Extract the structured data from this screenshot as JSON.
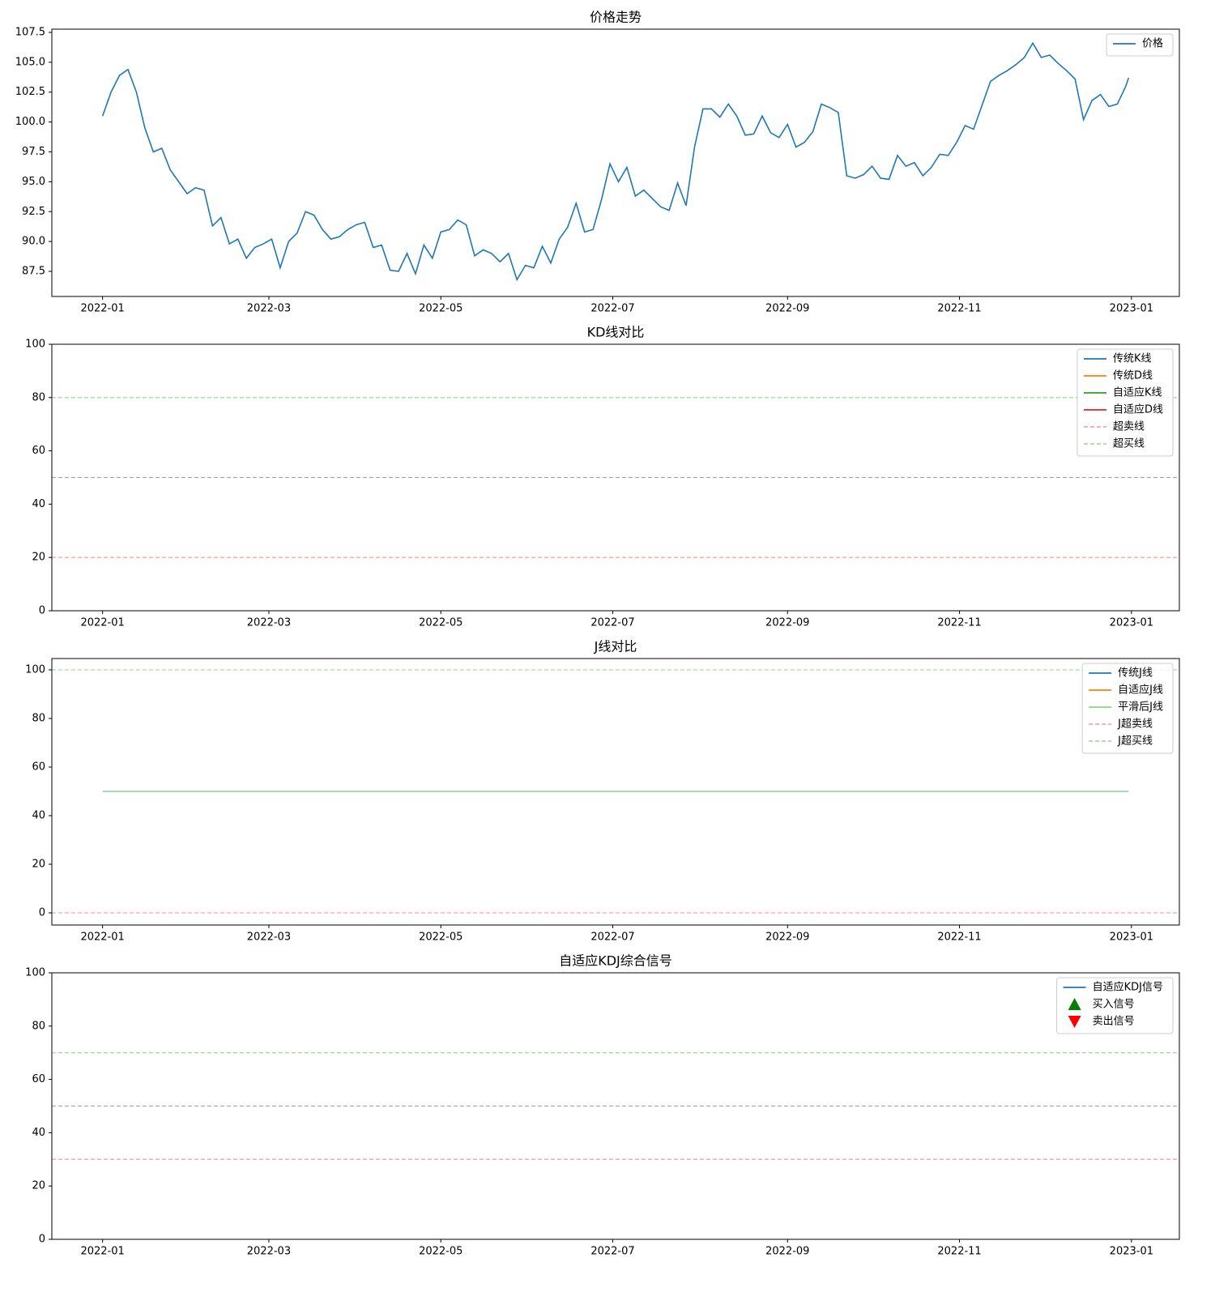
{
  "chart_data": [
    {
      "type": "line",
      "title": "价格走势",
      "x": [
        "2022-01-01",
        "2022-01-04",
        "2022-01-07",
        "2022-01-10",
        "2022-01-13",
        "2022-01-16",
        "2022-01-19",
        "2022-01-22",
        "2022-01-25",
        "2022-01-28",
        "2022-01-31",
        "2022-02-03",
        "2022-02-06",
        "2022-02-09",
        "2022-02-12",
        "2022-02-15",
        "2022-02-18",
        "2022-02-21",
        "2022-02-24",
        "2022-02-27",
        "2022-03-02",
        "2022-03-05",
        "2022-03-08",
        "2022-03-11",
        "2022-03-14",
        "2022-03-17",
        "2022-03-20",
        "2022-03-23",
        "2022-03-26",
        "2022-03-29",
        "2022-04-01",
        "2022-04-04",
        "2022-04-07",
        "2022-04-10",
        "2022-04-13",
        "2022-04-16",
        "2022-04-19",
        "2022-04-22",
        "2022-04-25",
        "2022-04-28",
        "2022-05-01",
        "2022-05-04",
        "2022-05-07",
        "2022-05-10",
        "2022-05-13",
        "2022-05-16",
        "2022-05-19",
        "2022-05-22",
        "2022-05-25",
        "2022-05-28",
        "2022-05-31",
        "2022-06-03",
        "2022-06-06",
        "2022-06-09",
        "2022-06-12",
        "2022-06-15",
        "2022-06-18",
        "2022-06-21",
        "2022-06-24",
        "2022-06-27",
        "2022-06-30",
        "2022-07-03",
        "2022-07-06",
        "2022-07-09",
        "2022-07-12",
        "2022-07-15",
        "2022-07-18",
        "2022-07-21",
        "2022-07-24",
        "2022-07-27",
        "2022-07-30",
        "2022-08-02",
        "2022-08-05",
        "2022-08-08",
        "2022-08-11",
        "2022-08-14",
        "2022-08-17",
        "2022-08-20",
        "2022-08-23",
        "2022-08-26",
        "2022-08-29",
        "2022-09-01",
        "2022-09-04",
        "2022-09-07",
        "2022-09-10",
        "2022-09-13",
        "2022-09-16",
        "2022-09-19",
        "2022-09-22",
        "2022-09-25",
        "2022-09-28",
        "2022-10-01",
        "2022-10-04",
        "2022-10-07",
        "2022-10-10",
        "2022-10-13",
        "2022-10-16",
        "2022-10-19",
        "2022-10-22",
        "2022-10-25",
        "2022-10-28",
        "2022-10-31",
        "2022-11-03",
        "2022-11-06",
        "2022-11-09",
        "2022-11-12",
        "2022-11-15",
        "2022-11-18",
        "2022-11-21",
        "2022-11-24",
        "2022-11-27",
        "2022-11-30",
        "2022-12-03",
        "2022-12-06",
        "2022-12-09",
        "2022-12-12",
        "2022-12-15",
        "2022-12-18",
        "2022-12-21",
        "2022-12-24",
        "2022-12-27",
        "2022-12-30",
        "2022-12-31"
      ],
      "series": [
        {
          "name": "价格",
          "color": "#1f77b4",
          "values": [
            100.5,
            102.5,
            103.9,
            104.4,
            102.5,
            99.5,
            97.5,
            97.8,
            96.0,
            95.0,
            94.0,
            94.5,
            94.3,
            91.3,
            92.0,
            89.8,
            90.2,
            88.6,
            89.5,
            89.8,
            90.2,
            87.8,
            90.0,
            90.7,
            92.5,
            92.2,
            91.0,
            90.2,
            90.4,
            91.0,
            91.4,
            91.6,
            89.5,
            89.7,
            87.6,
            87.5,
            89.0,
            87.3,
            89.7,
            88.6,
            90.8,
            91.0,
            91.8,
            91.4,
            88.8,
            89.3,
            89.0,
            88.3,
            89.0,
            86.8,
            88.0,
            87.8,
            89.6,
            88.2,
            90.2,
            91.2,
            93.2,
            90.8,
            91.0,
            93.5,
            96.5,
            95.0,
            96.2,
            93.8,
            94.3,
            93.6,
            92.9,
            92.6,
            94.9,
            93.0,
            97.9,
            101.1,
            101.1,
            100.4,
            101.5,
            100.5,
            98.9,
            99.0,
            100.5,
            99.1,
            98.7,
            99.8,
            97.9,
            98.3,
            99.2,
            101.5,
            101.2,
            100.8,
            95.5,
            95.3,
            95.6,
            96.3,
            95.3,
            95.2,
            97.2,
            96.3,
            96.6,
            95.5,
            96.2,
            97.3,
            97.2,
            98.3,
            99.7,
            99.4,
            101.4,
            103.4,
            103.9,
            104.3,
            104.8,
            105.4,
            106.6,
            105.4,
            105.6,
            104.9,
            104.3,
            103.6,
            100.2,
            101.8,
            102.3,
            101.3,
            101.5,
            103.0,
            103.7
          ]
        }
      ],
      "xlim": [
        "2021-12-14",
        "2023-01-18"
      ],
      "xticks": [
        {
          "value": "2022-01-01",
          "label": "2022-01"
        },
        {
          "value": "2022-03-01",
          "label": "2022-03"
        },
        {
          "value": "2022-05-01",
          "label": "2022-05"
        },
        {
          "value": "2022-07-01",
          "label": "2022-07"
        },
        {
          "value": "2022-09-01",
          "label": "2022-09"
        },
        {
          "value": "2022-11-01",
          "label": "2022-11"
        },
        {
          "value": "2023-01-01",
          "label": "2023-01"
        }
      ],
      "ylim": [
        85.4,
        107.77
      ],
      "yticks": [
        {
          "value": 87.5,
          "label": "87.5"
        },
        {
          "value": 90,
          "label": "90.0"
        },
        {
          "value": 92.5,
          "label": "92.5"
        },
        {
          "value": 95,
          "label": "95.0"
        },
        {
          "value": 97.5,
          "label": "97.5"
        },
        {
          "value": 100,
          "label": "100.0"
        },
        {
          "value": 102.5,
          "label": "102.5"
        },
        {
          "value": 105,
          "label": "105.0"
        },
        {
          "value": 107.5,
          "label": "107.5"
        }
      ],
      "legend": "upper right"
    },
    {
      "type": "line",
      "title": "KD线对比",
      "series": [
        {
          "name": "传统K线",
          "color": "#1f77b4"
        },
        {
          "name": "传统D线",
          "color": "#ff7f0e"
        },
        {
          "name": "自适应K线",
          "color": "#2ca02c"
        },
        {
          "name": "自适应D线",
          "color": "#d62728"
        }
      ],
      "hlines": [
        {
          "value": 20,
          "color": "#ffa3a3",
          "name": "超卖线"
        },
        {
          "value": 80,
          "color": "#a6d9a6",
          "name": "超买线"
        },
        {
          "value": 50,
          "color": "#a6a6a6"
        }
      ],
      "xlim": [
        "2021-12-14",
        "2023-01-18"
      ],
      "xticks": [
        {
          "value": "2022-01-01",
          "label": "2022-01"
        },
        {
          "value": "2022-03-01",
          "label": "2022-03"
        },
        {
          "value": "2022-05-01",
          "label": "2022-05"
        },
        {
          "value": "2022-07-01",
          "label": "2022-07"
        },
        {
          "value": "2022-09-01",
          "label": "2022-09"
        },
        {
          "value": "2022-11-01",
          "label": "2022-11"
        },
        {
          "value": "2023-01-01",
          "label": "2023-01"
        }
      ],
      "ylim": [
        0,
        100
      ],
      "yticks": [
        0,
        20,
        40,
        60,
        80,
        100
      ],
      "legend": "upper right"
    },
    {
      "type": "line",
      "title": "J线对比",
      "x": [
        "2022-01-01",
        "2022-12-31"
      ],
      "series": [
        {
          "name": "传统J线",
          "color": "#1f77b4"
        },
        {
          "name": "自适应J线",
          "color": "#ff7f0e"
        },
        {
          "name": "平滑后J线",
          "color": "#8fd18f",
          "values": [
            50,
            50
          ]
        }
      ],
      "hlines": [
        {
          "value": 0,
          "color": "#ffa3a3",
          "name": "J超卖线"
        },
        {
          "value": 100,
          "color": "#a6d9a6",
          "name": "J超买线"
        }
      ],
      "xlim": [
        "2021-12-14",
        "2023-01-18"
      ],
      "xticks": [
        {
          "value": "2022-01-01",
          "label": "2022-01"
        },
        {
          "value": "2022-03-01",
          "label": "2022-03"
        },
        {
          "value": "2022-05-01",
          "label": "2022-05"
        },
        {
          "value": "2022-07-01",
          "label": "2022-07"
        },
        {
          "value": "2022-09-01",
          "label": "2022-09"
        },
        {
          "value": "2022-11-01",
          "label": "2022-11"
        },
        {
          "value": "2023-01-01",
          "label": "2023-01"
        }
      ],
      "ylim": [
        -5,
        104.67
      ],
      "yticks": [
        0,
        20,
        40,
        60,
        80,
        100
      ],
      "legend": "upper right"
    },
    {
      "type": "line",
      "title": "自适应KDJ综合信号",
      "series": [
        {
          "name": "自适应KDJ信号",
          "color": "#1f77b4"
        },
        {
          "name": "买入信号",
          "color": "#008000",
          "marker": "triangle-up"
        },
        {
          "name": "卖出信号",
          "color": "#ff0000",
          "marker": "triangle-down"
        }
      ],
      "hlines": [
        {
          "value": 70,
          "color": "#a6d9a6"
        },
        {
          "value": 50,
          "color": "#a6a6a6"
        },
        {
          "value": 30,
          "color": "#ffa3a3"
        }
      ],
      "xlim": [
        "2021-12-14",
        "2023-01-18"
      ],
      "xticks": [
        {
          "value": "2022-01-01",
          "label": "2022-01"
        },
        {
          "value": "2022-03-01",
          "label": "2022-03"
        },
        {
          "value": "2022-05-01",
          "label": "2022-05"
        },
        {
          "value": "2022-07-01",
          "label": "2022-07"
        },
        {
          "value": "2022-09-01",
          "label": "2022-09"
        },
        {
          "value": "2022-11-01",
          "label": "2022-11"
        },
        {
          "value": "2023-01-01",
          "label": "2023-01"
        }
      ],
      "ylim": [
        0,
        100
      ],
      "yticks": [
        0,
        20,
        40,
        60,
        80,
        100
      ],
      "legend": "upper right"
    }
  ]
}
